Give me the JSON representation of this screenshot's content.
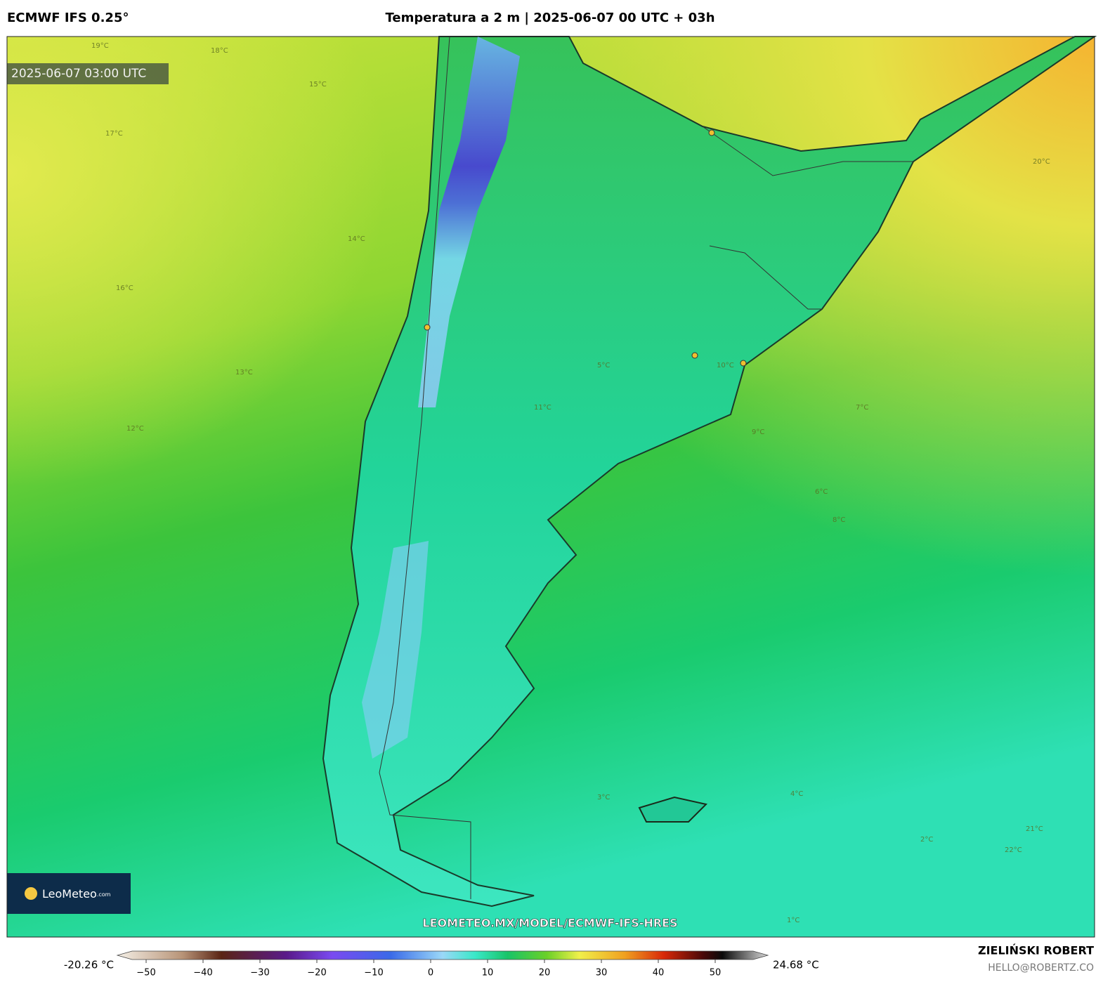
{
  "header": {
    "model": "ECMWF IFS 0.25°",
    "title": "Temperatura a 2 m | 2025-06-07 00 UTC + 03h",
    "timestamp": "2025-06-07 03:00 UTC"
  },
  "map": {
    "logo": "LeoMeteo",
    "logo_suffix": ".com",
    "url": "LEOMETEO.MX/MODEL/ECMWF-IFS-HRES",
    "contour_labels": [
      "19°C",
      "18°C",
      "17°C",
      "16°C",
      "15°C",
      "14°C",
      "13°C",
      "12°C",
      "11°C",
      "10°C",
      "9°C",
      "8°C",
      "7°C",
      "6°C",
      "5°C",
      "4°C",
      "3°C",
      "2°C",
      "1°C",
      "22°C",
      "21°C",
      "20°C"
    ]
  },
  "colorbar": {
    "min_label": "-20.26 °C",
    "max_label": "24.68 °C",
    "ticks": [
      "−50",
      "−40",
      "−30",
      "−20",
      "−10",
      "0",
      "10",
      "20",
      "30",
      "40",
      "50"
    ]
  },
  "footer": {
    "author": "ZIELIŃSKI ROBERT",
    "contact": "HELLO@ROBERTZ.CO"
  }
}
